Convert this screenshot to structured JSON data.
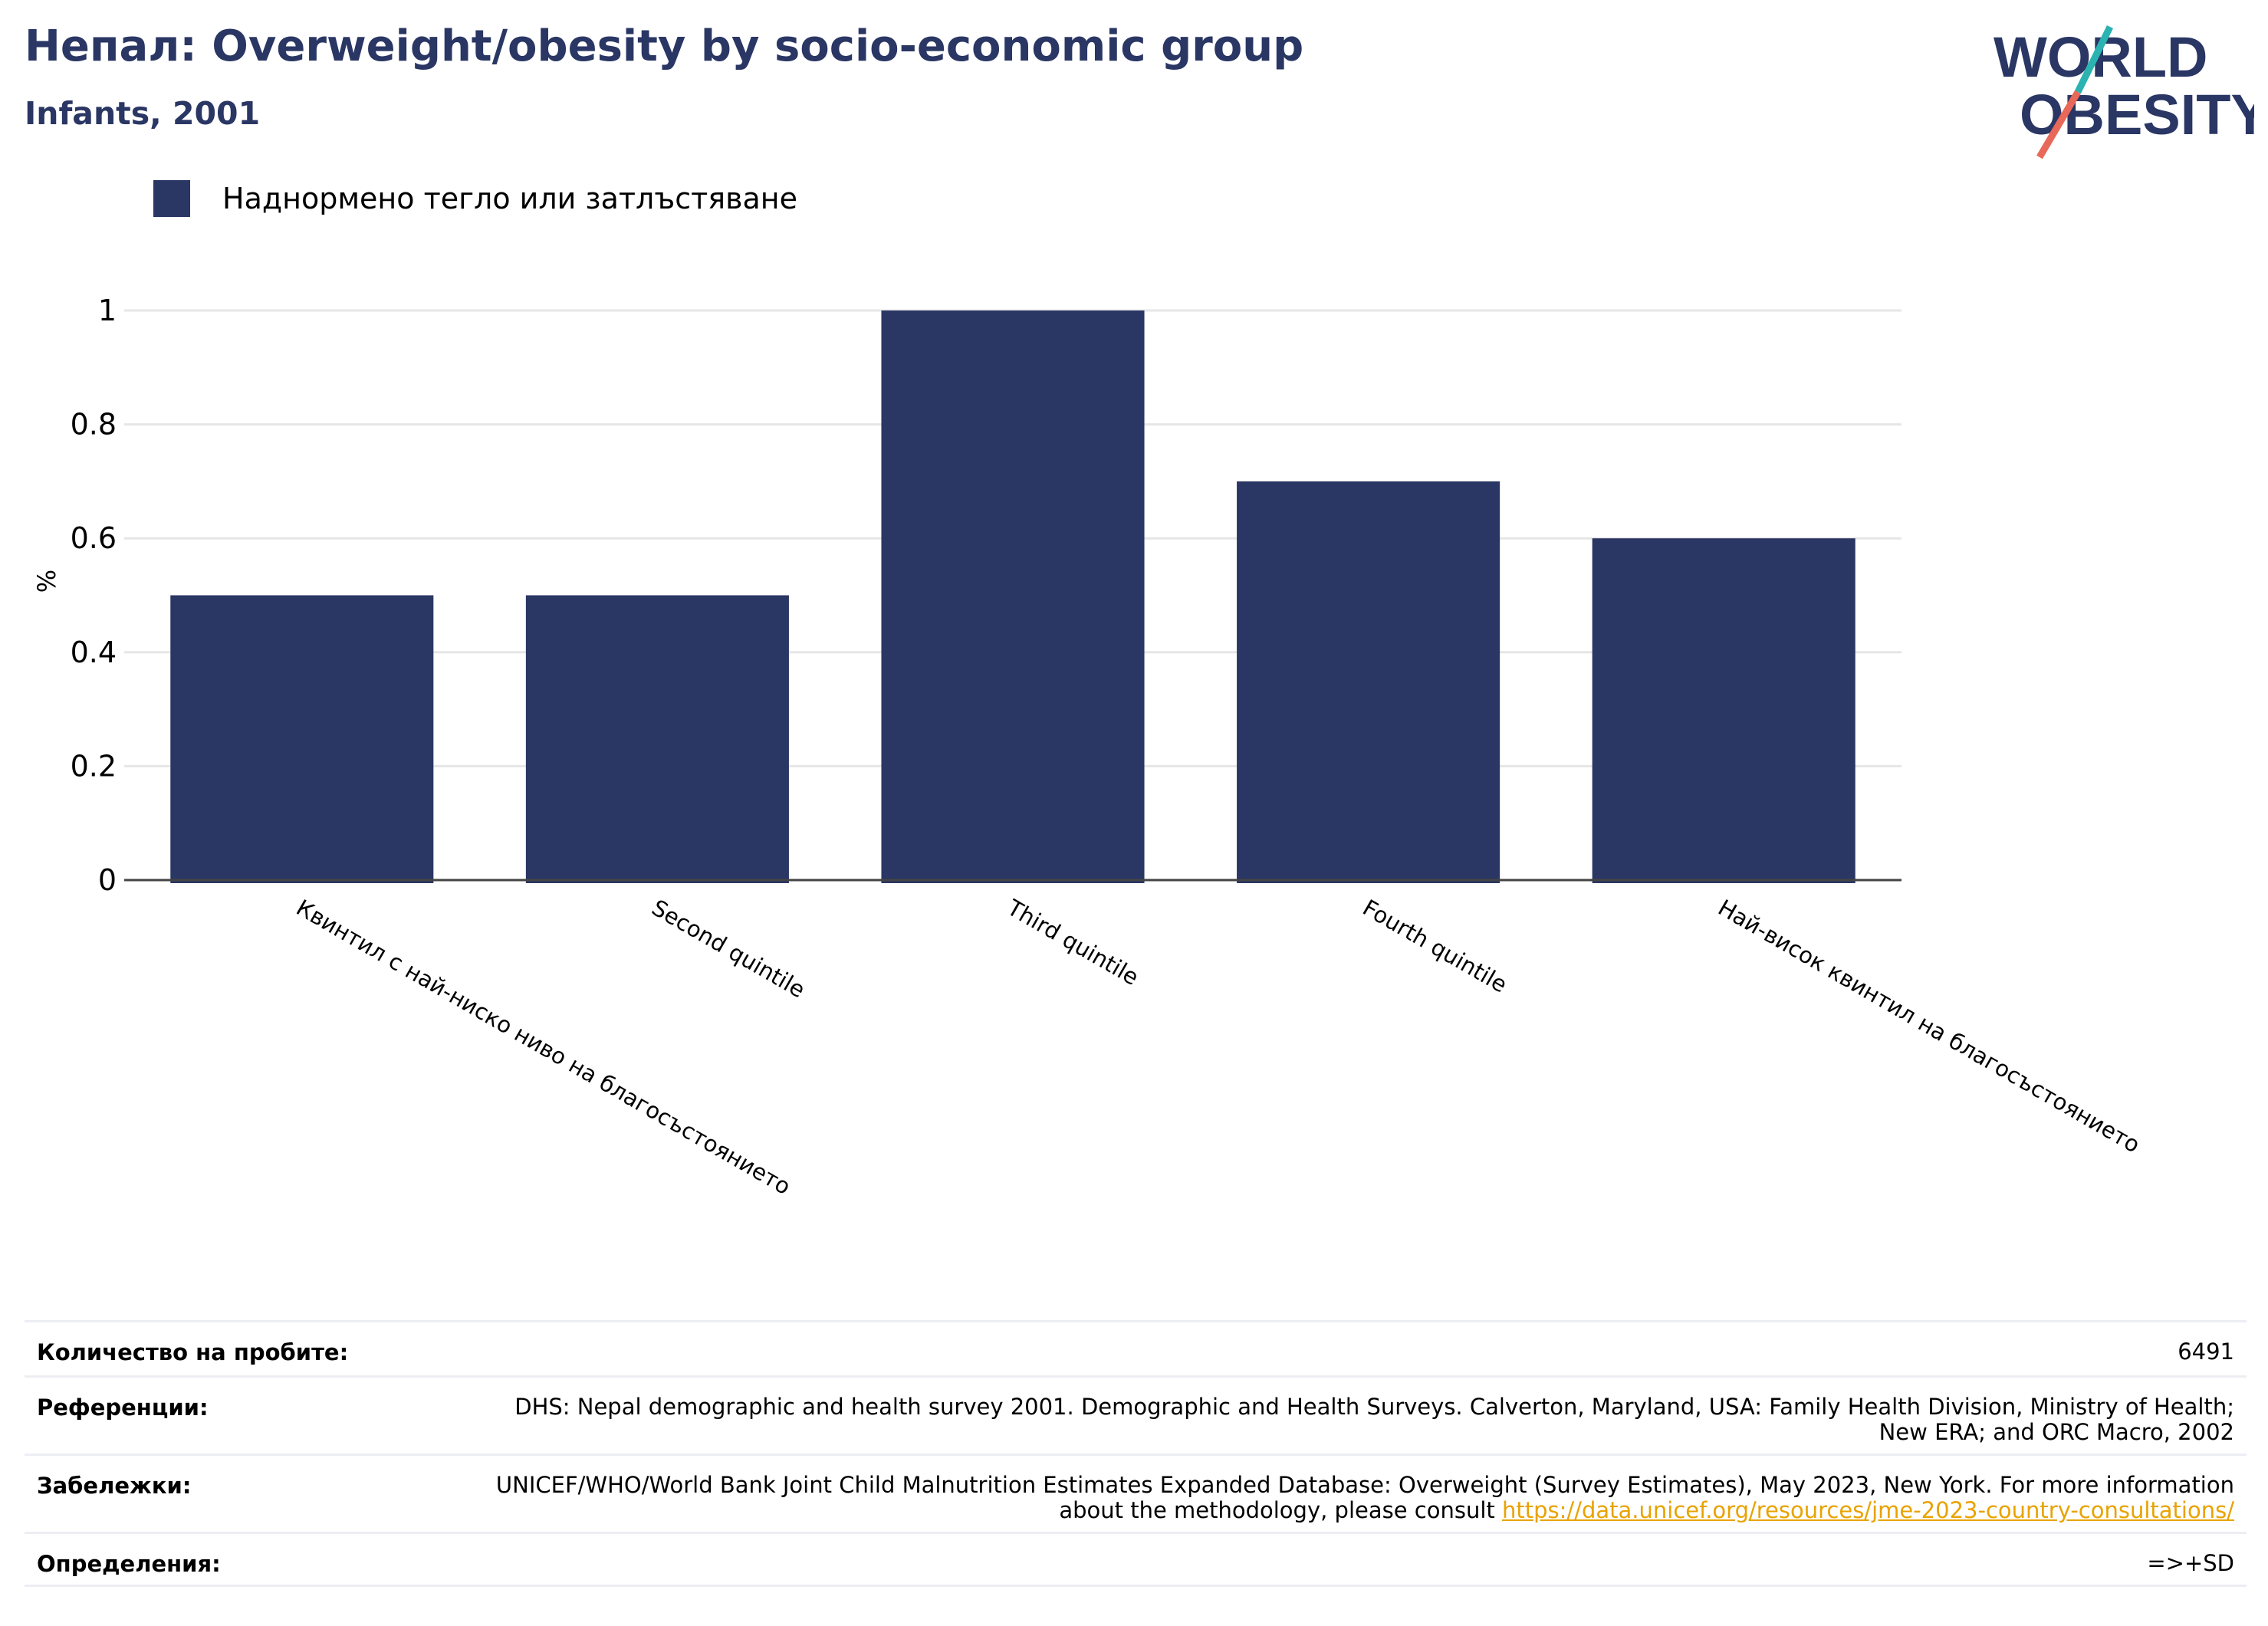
{
  "header": {
    "title": "Непал: Overweight/obesity by socio-economic group",
    "subtitle": "Infants, 2001"
  },
  "logo": {
    "line1": "WORLD",
    "line2": "OBESITY",
    "colors": {
      "text": "#2a3663",
      "slash_top": "#2bb3b1",
      "slash_bottom": "#e8685a"
    }
  },
  "colors": {
    "bar": "#2a3663",
    "grid": "#e6e6e6",
    "axis": "#444444",
    "link": "#e8a300"
  },
  "chart_data": {
    "type": "bar",
    "categories": [
      "Квинтил с най-ниско ниво на благосъстоянието",
      "Second quintile",
      "Third quintile",
      "Fourth quintile",
      "Най-висок квинтил на благосъстоянието"
    ],
    "series": [
      {
        "name": "Наднормено тегло или затлъстяване",
        "values": [
          0.5,
          0.5,
          1.0,
          0.7,
          0.6
        ]
      }
    ],
    "ylabel": "%",
    "ylim": [
      0,
      1
    ],
    "yticks": [
      0,
      0.2,
      0.4,
      0.6,
      0.8,
      1
    ],
    "ytick_labels": [
      "0",
      "0.2",
      "0.4",
      "0.6",
      "0.8",
      "1"
    ],
    "grid": true,
    "legend_position": "top-left"
  },
  "footer": {
    "rows": [
      {
        "label": "Количество на пробите:",
        "value": "6491"
      },
      {
        "label": "Референции:",
        "value": "DHS: Nepal demographic and health survey 2001. Demographic and Health Surveys. Calverton, Maryland, USA: Family Health Division, Ministry of Health; New ERA; and ORC Macro, 2002"
      },
      {
        "label": "Забележки:",
        "value": "UNICEF/WHO/World Bank Joint Child Malnutrition Estimates Expanded Database: Overweight (Survey Estimates), May 2023, New York. For more information about the methodology, please consult ",
        "link": "https://data.unicef.org/resources/jme-2023-country-consultations/"
      },
      {
        "label": "Определения:",
        "value": "=>+SD"
      }
    ]
  }
}
